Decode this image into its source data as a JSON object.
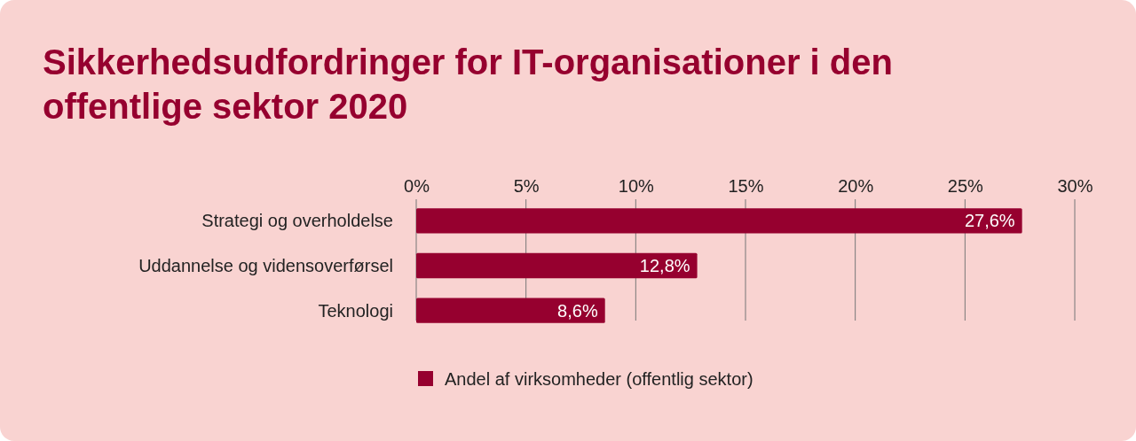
{
  "chart_data": {
    "type": "bar",
    "orientation": "horizontal",
    "title": "Sikkerhedsudfordringer for IT-organisationer i den offentlige sektor 2020",
    "categories": [
      "Strategi og overholdelse",
      "Uddannelse og vidensoverførsel",
      "Teknologi"
    ],
    "series": [
      {
        "name": "Andel af virksomheder (offentlig sektor)",
        "color": "#96002f",
        "values": [
          27.6,
          12.8,
          8.6
        ],
        "value_labels": [
          "27,6%",
          "12,8%",
          "8,6%"
        ]
      }
    ],
    "xlim": [
      0,
      30
    ],
    "xticks": [
      {
        "value": 0,
        "label": "0%"
      },
      {
        "value": 5,
        "label": "5%"
      },
      {
        "value": 10,
        "label": "10%"
      },
      {
        "value": 15,
        "label": "15%"
      },
      {
        "value": 20,
        "label": "20%"
      },
      {
        "value": 25,
        "label": "25%"
      },
      {
        "value": 30,
        "label": "30%"
      }
    ],
    "grid": "x",
    "legend": "bottom"
  }
}
